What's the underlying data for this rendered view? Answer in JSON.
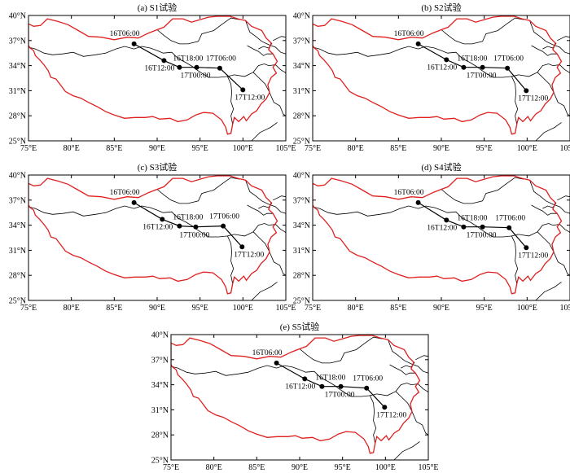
{
  "panels": [
    {
      "title": "(a) S1试验",
      "points": [
        [
          87.3,
          36.6
        ],
        [
          90.8,
          34.6
        ],
        [
          92.6,
          33.8
        ],
        [
          94.6,
          33.8
        ],
        [
          97.3,
          33.7
        ],
        [
          100.0,
          31.1
        ]
      ]
    },
    {
      "title": "(b) S2试验",
      "points": [
        [
          87.3,
          36.6
        ],
        [
          90.6,
          34.7
        ],
        [
          92.6,
          33.8
        ],
        [
          94.8,
          33.8
        ],
        [
          97.7,
          33.7
        ],
        [
          99.9,
          31.0
        ]
      ]
    },
    {
      "title": "(c) S3试验",
      "points": [
        [
          87.3,
          36.7
        ],
        [
          90.6,
          34.7
        ],
        [
          92.6,
          33.9
        ],
        [
          94.5,
          33.8
        ],
        [
          97.7,
          33.9
        ],
        [
          99.9,
          31.4
        ]
      ]
    },
    {
      "title": "(d) S4试验",
      "points": [
        [
          87.3,
          36.7
        ],
        [
          90.6,
          34.6
        ],
        [
          92.6,
          33.8
        ],
        [
          94.8,
          33.8
        ],
        [
          97.9,
          33.7
        ],
        [
          99.9,
          31.3
        ]
      ]
    },
    {
      "title": "(e) S5试验",
      "points": [
        [
          87.3,
          36.6
        ],
        [
          90.6,
          34.7
        ],
        [
          92.6,
          33.8
        ],
        [
          94.8,
          33.8
        ],
        [
          97.8,
          33.6
        ],
        [
          99.9,
          31.3
        ]
      ]
    }
  ],
  "track_labels": [
    "16T06:00",
    "16T12:00",
    "16T18:00",
    "17T00:00",
    "17T06:00",
    "17T12:00"
  ],
  "x_ticks": [
    "75°E",
    "80°E",
    "85°E",
    "90°E",
    "95°E",
    "100°E",
    "105°E"
  ],
  "y_ticks": [
    "25°N",
    "28°N",
    "31°N",
    "34°N",
    "37°N",
    "40°N"
  ],
  "map_extent": {
    "lon": [
      75,
      105
    ],
    "lat": [
      25,
      40
    ]
  },
  "colors": {
    "plateau_boundary": "#e01f1f",
    "province_boundary": "#000000",
    "track": "#000000"
  }
}
